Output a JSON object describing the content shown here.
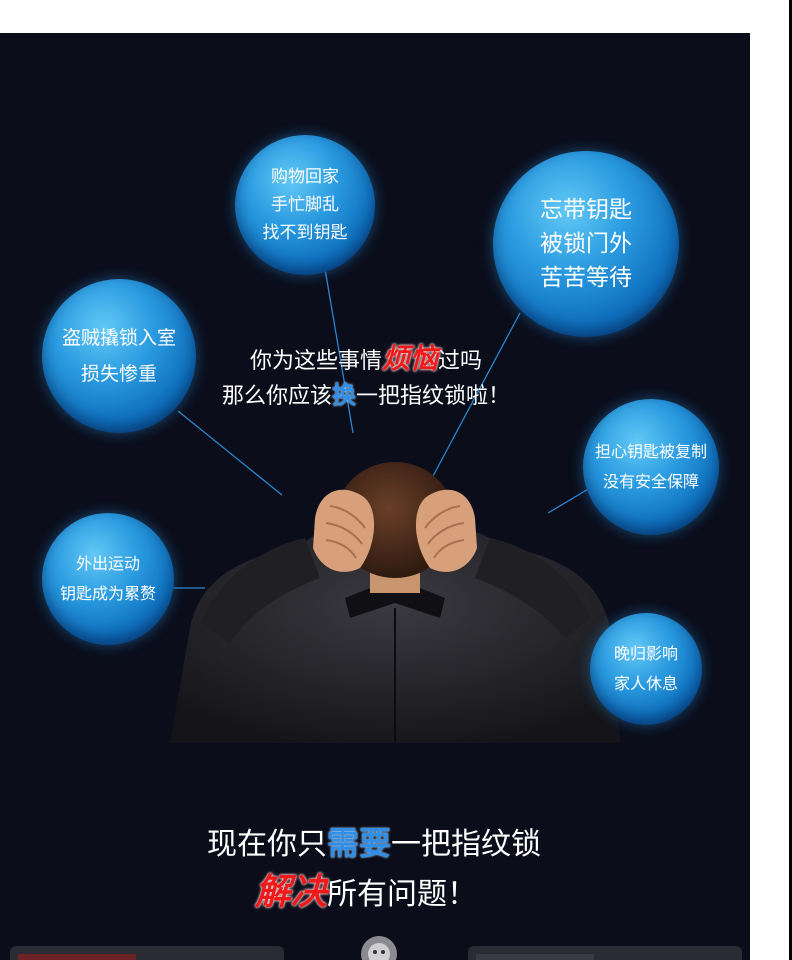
{
  "bubbles": {
    "shopping": [
      "购物回家",
      "手忙脚乱",
      "找不到钥匙"
    ],
    "forgot": [
      "忘带钥匙",
      "被锁门外",
      "苦苦等待"
    ],
    "burglary": [
      "盗贼撬锁入室",
      "损失惨重"
    ],
    "copied": [
      "担心钥匙被复制",
      "没有安全保障"
    ],
    "outdoor": [
      "外出运动",
      "钥匙成为累赘"
    ],
    "late": [
      "晚归影响",
      "家人休息"
    ]
  },
  "headline": {
    "line1_prefix": "你为这些事情",
    "line1_em": "烦恼",
    "line1_suffix": "过吗",
    "line2_prefix": "那么你应该",
    "line2_em": "换",
    "line2_suffix": "一把指纹锁啦！"
  },
  "bottom": {
    "line1_prefix": "现在你只",
    "line1_em": "需要",
    "line1_suffix": "一把指纹锁",
    "line2_em": "解决",
    "line2_suffix": "所有问题！"
  },
  "colors": {
    "background": "#0b0d1a",
    "bubble": "#2a9be0",
    "emphasis_red": "#f01818",
    "emphasis_blue": "#2f8fe8"
  }
}
